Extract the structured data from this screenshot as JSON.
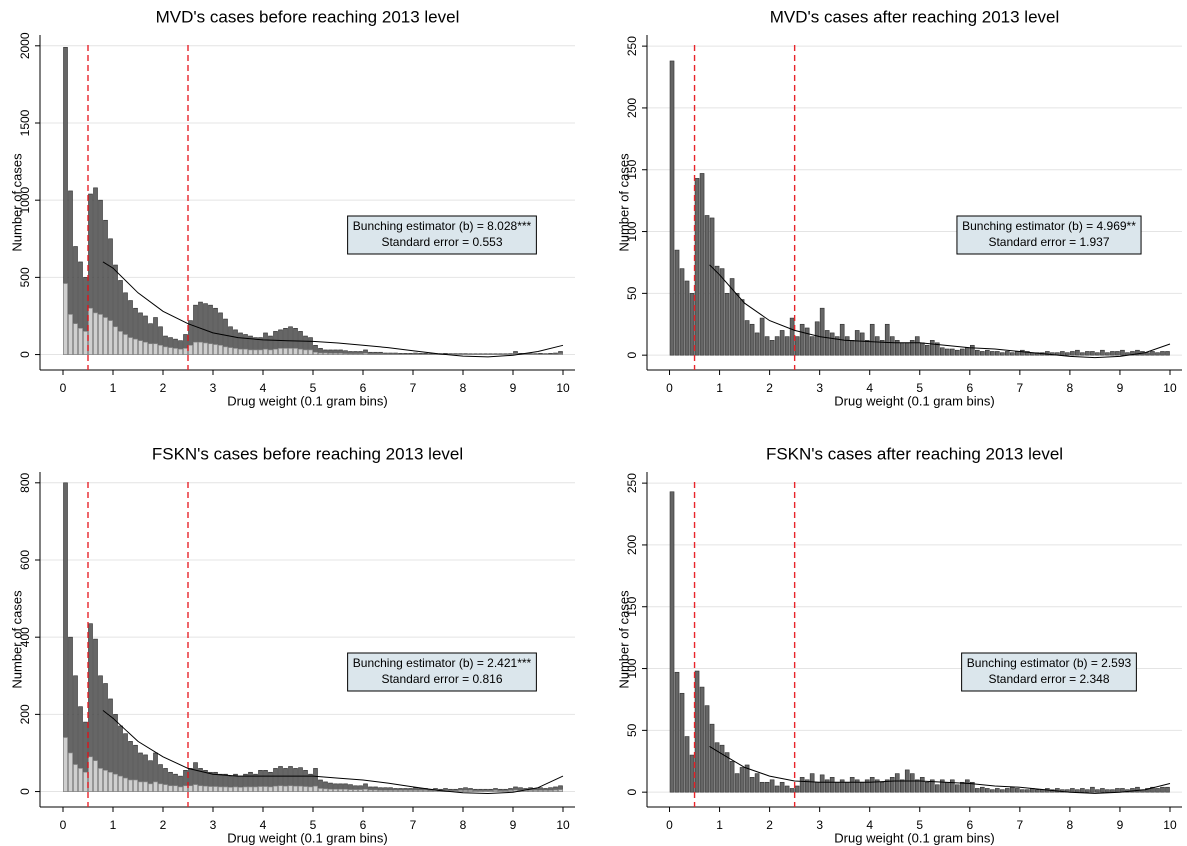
{
  "chart_data": [
    {
      "type": "histogram",
      "title": "MVD's cases before reaching 2013 level",
      "x_label": "Drug weight (0.1 gram bins)",
      "y_label": "Number of cases",
      "bins": [
        0,
        0.1,
        0.2,
        0.3,
        0.4,
        0.5,
        0.6,
        0.7,
        0.8,
        0.9,
        1,
        1.1,
        1.2,
        1.3,
        1.4,
        1.5,
        1.6,
        1.7,
        1.8,
        1.9,
        2,
        2.1,
        2.2,
        2.3,
        2.4,
        2.5,
        2.6,
        2.7,
        2.8,
        2.9,
        3,
        3.1,
        3.2,
        3.3,
        3.4,
        3.5,
        3.6,
        3.7,
        3.8,
        3.9,
        4,
        4.1,
        4.2,
        4.3,
        4.4,
        4.5,
        4.6,
        4.7,
        4.8,
        4.9,
        5,
        5.1,
        5.2,
        5.3,
        5.4,
        5.5,
        5.6,
        5.7,
        5.8,
        5.9,
        6,
        6.1,
        6.2,
        6.3,
        6.4,
        6.5,
        6.6,
        6.7,
        6.8,
        6.9,
        7,
        7.1,
        7.2,
        7.3,
        7.4,
        7.5,
        7.6,
        7.7,
        7.8,
        7.9,
        8,
        8.1,
        8.2,
        8.3,
        8.4,
        8.5,
        8.6,
        8.7,
        8.8,
        8.9,
        9,
        9.1,
        9.2,
        9.3,
        9.4,
        9.5,
        9.6,
        9.7,
        9.8,
        9.9,
        10
      ],
      "values": [
        1990,
        1060,
        700,
        600,
        500,
        1040,
        1080,
        1000,
        870,
        750,
        580,
        480,
        400,
        350,
        300,
        270,
        250,
        200,
        240,
        180,
        120,
        110,
        100,
        90,
        130,
        220,
        320,
        340,
        330,
        320,
        300,
        270,
        230,
        180,
        160,
        140,
        130,
        120,
        110,
        110,
        140,
        120,
        150,
        160,
        170,
        180,
        170,
        150,
        120,
        110,
        60,
        40,
        30,
        30,
        30,
        30,
        25,
        20,
        20,
        20,
        30,
        15,
        15,
        15,
        10,
        10,
        10,
        8,
        8,
        8,
        10,
        8,
        8,
        6,
        6,
        6,
        8,
        6,
        6,
        6,
        6,
        5,
        5,
        5,
        5,
        5,
        5,
        5,
        5,
        6,
        20,
        8,
        8,
        6,
        6,
        8,
        6,
        8,
        10,
        20
      ],
      "light_values": [
        460,
        260,
        200,
        170,
        150,
        300,
        270,
        260,
        240,
        220,
        180,
        150,
        130,
        110,
        100,
        90,
        80,
        70,
        70,
        60,
        50,
        45,
        40,
        35,
        40,
        60,
        80,
        80,
        75,
        70,
        65,
        60,
        50,
        45,
        40,
        35,
        35,
        30,
        30,
        30,
        35,
        30,
        35,
        40,
        40,
        40,
        40,
        35,
        30,
        30,
        15,
        10,
        10,
        8,
        8,
        8,
        6,
        5,
        5,
        5,
        8,
        4,
        4,
        4,
        3,
        3,
        3,
        2,
        2,
        2,
        3,
        2,
        2,
        2,
        2,
        2,
        2,
        2,
        2,
        2,
        2,
        1,
        1,
        1,
        1,
        1,
        1,
        1,
        1,
        2,
        5,
        2,
        2,
        2,
        2,
        2,
        2,
        2,
        3,
        5
      ],
      "color": "#666666",
      "light_color": "#cfcfcf",
      "fit": {
        "x": [
          0.8,
          1,
          1.5,
          2,
          2.5,
          3,
          3.5,
          4,
          4.5,
          5,
          5.5,
          6,
          6.5,
          7,
          7.5,
          8,
          8.5,
          9,
          9.5,
          10
        ],
        "values": [
          600,
          560,
          400,
          280,
          200,
          140,
          110,
          95,
          90,
          85,
          75,
          60,
          45,
          25,
          5,
          -10,
          -15,
          -5,
          20,
          60
        ],
        "color": "#000000"
      },
      "vlines": [
        0.5,
        2.5
      ],
      "vline_color": "#e8242a",
      "annotation": [
        "Bunching estimator (b) = 8.028***",
        "Standard error = 0.553"
      ],
      "xlim": [
        -0.46,
        10.24
      ],
      "xticks": [
        0,
        1,
        2,
        3,
        4,
        5,
        6,
        7,
        8,
        9,
        10
      ],
      "ylim": [
        -100,
        2070
      ],
      "yticks": [
        0,
        500,
        1000,
        1500,
        2000
      ],
      "grid": true
    },
    {
      "type": "histogram",
      "title": "MVD's cases after reaching 2013 level",
      "x_label": "Drug weight (0.1 gram bins)",
      "y_label": "Number of cases",
      "bins": [
        0,
        0.1,
        0.2,
        0.3,
        0.4,
        0.5,
        0.6,
        0.7,
        0.8,
        0.9,
        1,
        1.1,
        1.2,
        1.3,
        1.4,
        1.5,
        1.6,
        1.7,
        1.8,
        1.9,
        2,
        2.1,
        2.2,
        2.3,
        2.4,
        2.5,
        2.6,
        2.7,
        2.8,
        2.9,
        3,
        3.1,
        3.2,
        3.3,
        3.4,
        3.5,
        3.6,
        3.7,
        3.8,
        3.9,
        4,
        4.1,
        4.2,
        4.3,
        4.4,
        4.5,
        4.6,
        4.7,
        4.8,
        4.9,
        5,
        5.1,
        5.2,
        5.3,
        5.4,
        5.5,
        5.6,
        5.7,
        5.8,
        5.9,
        6,
        6.1,
        6.2,
        6.3,
        6.4,
        6.5,
        6.6,
        6.7,
        6.8,
        6.9,
        7,
        7.1,
        7.2,
        7.3,
        7.4,
        7.5,
        7.6,
        7.7,
        7.8,
        7.9,
        8,
        8.1,
        8.2,
        8.3,
        8.4,
        8.5,
        8.6,
        8.7,
        8.8,
        8.9,
        9,
        9.1,
        9.2,
        9.3,
        9.4,
        9.5,
        9.6,
        9.7,
        9.8,
        9.9,
        10
      ],
      "values": [
        238,
        85,
        70,
        60,
        50,
        143,
        147,
        113,
        111,
        72,
        70,
        50,
        62,
        50,
        45,
        28,
        25,
        18,
        30,
        15,
        12,
        15,
        20,
        15,
        30,
        15,
        25,
        22,
        15,
        27,
        38,
        20,
        18,
        15,
        25,
        15,
        12,
        20,
        18,
        12,
        25,
        15,
        12,
        25,
        15,
        12,
        10,
        10,
        12,
        15,
        10,
        8,
        12,
        10,
        6,
        5,
        5,
        4,
        5,
        6,
        8,
        4,
        3,
        4,
        3,
        3,
        2,
        3,
        2,
        3,
        4,
        3,
        2,
        2,
        2,
        3,
        2,
        2,
        3,
        2,
        3,
        4,
        2,
        3,
        3,
        2,
        4,
        2,
        3,
        3,
        4,
        2,
        3,
        4,
        3,
        2,
        3,
        2,
        3,
        3
      ],
      "color": "#666666",
      "fit": {
        "x": [
          0.8,
          1,
          1.5,
          2,
          2.5,
          3,
          3.5,
          4,
          4.5,
          5,
          5.5,
          6,
          6.5,
          7,
          7.5,
          8,
          8.5,
          9,
          9.5,
          10
        ],
        "values": [
          73,
          65,
          42,
          28,
          20,
          15,
          12,
          11,
          10,
          10,
          8,
          6,
          5,
          3,
          1,
          -1,
          -2,
          -1,
          2,
          9
        ],
        "color": "#000000"
      },
      "vlines": [
        0.5,
        2.5
      ],
      "vline_color": "#e8242a",
      "annotation": [
        "Bunching estimator (b) = 4.969**",
        "Standard error = 1.937"
      ],
      "xlim": [
        -0.45,
        10.24
      ],
      "xticks": [
        0,
        1,
        2,
        3,
        4,
        5,
        6,
        7,
        8,
        9,
        10
      ],
      "ylim": [
        -12,
        259
      ],
      "yticks": [
        0,
        50,
        100,
        150,
        200,
        250
      ],
      "grid": true
    },
    {
      "type": "histogram",
      "title": "FSKN's cases before reaching 2013 level",
      "x_label": "Drug weight (0.1 gram bins)",
      "y_label": "Number of cases",
      "bins": [
        0,
        0.1,
        0.2,
        0.3,
        0.4,
        0.5,
        0.6,
        0.7,
        0.8,
        0.9,
        1,
        1.1,
        1.2,
        1.3,
        1.4,
        1.5,
        1.6,
        1.7,
        1.8,
        1.9,
        2,
        2.1,
        2.2,
        2.3,
        2.4,
        2.5,
        2.6,
        2.7,
        2.8,
        2.9,
        3,
        3.1,
        3.2,
        3.3,
        3.4,
        3.5,
        3.6,
        3.7,
        3.8,
        3.9,
        4,
        4.1,
        4.2,
        4.3,
        4.4,
        4.5,
        4.6,
        4.7,
        4.8,
        4.9,
        5,
        5.1,
        5.2,
        5.3,
        5.4,
        5.5,
        5.6,
        5.7,
        5.8,
        5.9,
        6,
        6.1,
        6.2,
        6.3,
        6.4,
        6.5,
        6.6,
        6.7,
        6.8,
        6.9,
        7,
        7.1,
        7.2,
        7.3,
        7.4,
        7.5,
        7.6,
        7.7,
        7.8,
        7.9,
        8,
        8.1,
        8.2,
        8.3,
        8.4,
        8.5,
        8.6,
        8.7,
        8.8,
        8.9,
        9,
        9.1,
        9.2,
        9.3,
        9.4,
        9.5,
        9.6,
        9.7,
        9.8,
        9.9,
        10
      ],
      "values": [
        800,
        400,
        300,
        220,
        180,
        435,
        395,
        300,
        280,
        240,
        200,
        170,
        150,
        130,
        120,
        100,
        95,
        80,
        100,
        70,
        60,
        50,
        45,
        40,
        55,
        60,
        75,
        60,
        55,
        50,
        50,
        45,
        45,
        40,
        45,
        40,
        45,
        50,
        45,
        55,
        55,
        50,
        60,
        65,
        60,
        65,
        60,
        62,
        55,
        45,
        60,
        30,
        25,
        22,
        20,
        20,
        20,
        18,
        15,
        15,
        20,
        12,
        12,
        10,
        10,
        10,
        8,
        8,
        8,
        8,
        10,
        8,
        8,
        6,
        8,
        6,
        8,
        6,
        6,
        8,
        10,
        8,
        6,
        6,
        6,
        6,
        8,
        6,
        6,
        8,
        12,
        10,
        8,
        10,
        8,
        10,
        8,
        10,
        12,
        15
      ],
      "light_values": [
        140,
        100,
        70,
        60,
        50,
        90,
        80,
        60,
        55,
        50,
        45,
        40,
        35,
        30,
        30,
        25,
        25,
        20,
        25,
        20,
        18,
        15,
        15,
        12,
        15,
        15,
        18,
        15,
        14,
        13,
        13,
        12,
        12,
        11,
        12,
        11,
        12,
        12,
        12,
        13,
        13,
        12,
        14,
        15,
        14,
        15,
        14,
        14,
        13,
        12,
        14,
        8,
        7,
        6,
        6,
        6,
        6,
        5,
        5,
        5,
        6,
        4,
        4,
        3,
        3,
        3,
        3,
        3,
        3,
        3,
        3,
        3,
        3,
        2,
        3,
        2,
        3,
        2,
        2,
        3,
        3,
        3,
        2,
        2,
        2,
        2,
        3,
        2,
        2,
        3,
        4,
        3,
        3,
        3,
        3,
        3,
        3,
        3,
        4,
        5
      ],
      "color": "#666666",
      "light_color": "#cfcfcf",
      "fit": {
        "x": [
          0.8,
          1,
          1.5,
          2,
          2.5,
          3,
          3.5,
          4,
          4.5,
          5,
          5.5,
          6,
          6.5,
          7,
          7.5,
          8,
          8.5,
          9,
          9.5,
          10
        ],
        "values": [
          210,
          190,
          130,
          90,
          60,
          45,
          40,
          40,
          40,
          40,
          35,
          30,
          22,
          12,
          3,
          -3,
          -5,
          -2,
          10,
          40
        ],
        "color": "#000000"
      },
      "vlines": [
        0.5,
        2.5
      ],
      "vline_color": "#e8242a",
      "annotation": [
        "Bunching estimator (b) = 2.421***",
        "Standard error = 0.816"
      ],
      "xlim": [
        -0.46,
        10.24
      ],
      "xticks": [
        0,
        1,
        2,
        3,
        4,
        5,
        6,
        7,
        8,
        9,
        10
      ],
      "ylim": [
        -40,
        828
      ],
      "yticks": [
        0,
        200,
        400,
        600,
        800
      ],
      "grid": true
    },
    {
      "type": "histogram",
      "title": "FSKN's cases after reaching 2013 level",
      "x_label": "Drug weight (0.1 gram bins)",
      "y_label": "Number of cases",
      "bins": [
        0,
        0.1,
        0.2,
        0.3,
        0.4,
        0.5,
        0.6,
        0.7,
        0.8,
        0.9,
        1,
        1.1,
        1.2,
        1.3,
        1.4,
        1.5,
        1.6,
        1.7,
        1.8,
        1.9,
        2,
        2.1,
        2.2,
        2.3,
        2.4,
        2.5,
        2.6,
        2.7,
        2.8,
        2.9,
        3,
        3.1,
        3.2,
        3.3,
        3.4,
        3.5,
        3.6,
        3.7,
        3.8,
        3.9,
        4,
        4.1,
        4.2,
        4.3,
        4.4,
        4.5,
        4.6,
        4.7,
        4.8,
        4.9,
        5,
        5.1,
        5.2,
        5.3,
        5.4,
        5.5,
        5.6,
        5.7,
        5.8,
        5.9,
        6,
        6.1,
        6.2,
        6.3,
        6.4,
        6.5,
        6.6,
        6.7,
        6.8,
        6.9,
        7,
        7.1,
        7.2,
        7.3,
        7.4,
        7.5,
        7.6,
        7.7,
        7.8,
        7.9,
        8,
        8.1,
        8.2,
        8.3,
        8.4,
        8.5,
        8.6,
        8.7,
        8.8,
        8.9,
        9,
        9.1,
        9.2,
        9.3,
        9.4,
        9.5,
        9.6,
        9.7,
        9.8,
        9.9,
        10
      ],
      "values": [
        243,
        97,
        80,
        45,
        30,
        98,
        85,
        70,
        55,
        40,
        38,
        32,
        25,
        15,
        20,
        22,
        12,
        15,
        8,
        8,
        10,
        5,
        8,
        5,
        3,
        5,
        12,
        10,
        15,
        8,
        14,
        10,
        12,
        8,
        10,
        8,
        12,
        10,
        8,
        10,
        12,
        10,
        8,
        10,
        12,
        15,
        10,
        18,
        15,
        10,
        12,
        8,
        10,
        6,
        10,
        8,
        10,
        6,
        8,
        10,
        8,
        3,
        4,
        3,
        2,
        3,
        2,
        3,
        4,
        3,
        2,
        2,
        3,
        2,
        2,
        3,
        2,
        3,
        2,
        2,
        3,
        2,
        3,
        2,
        4,
        2,
        3,
        2,
        2,
        3,
        3,
        2,
        3,
        4,
        2,
        3,
        4,
        3,
        4,
        4
      ],
      "color": "#666666",
      "fit": {
        "x": [
          0.8,
          1,
          1.5,
          2,
          2.5,
          3,
          3.5,
          4,
          4.5,
          5,
          5.5,
          6,
          6.5,
          7,
          7.5,
          8,
          8.5,
          9,
          9.5,
          10
        ],
        "values": [
          37,
          32,
          20,
          13,
          9,
          8,
          8,
          8,
          9,
          9,
          8,
          7,
          5,
          4,
          2,
          0,
          -1,
          0,
          2,
          7
        ],
        "color": "#000000"
      },
      "vlines": [
        0.5,
        2.5
      ],
      "vline_color": "#e8242a",
      "annotation": [
        "Bunching estimator (b) = 2.593",
        "Standard error = 2.348"
      ],
      "xlim": [
        -0.45,
        10.24
      ],
      "xticks": [
        0,
        1,
        2,
        3,
        4,
        5,
        6,
        7,
        8,
        9,
        10
      ],
      "ylim": [
        -12,
        259
      ],
      "yticks": [
        0,
        50,
        100,
        150,
        200,
        250
      ],
      "grid": true
    }
  ]
}
